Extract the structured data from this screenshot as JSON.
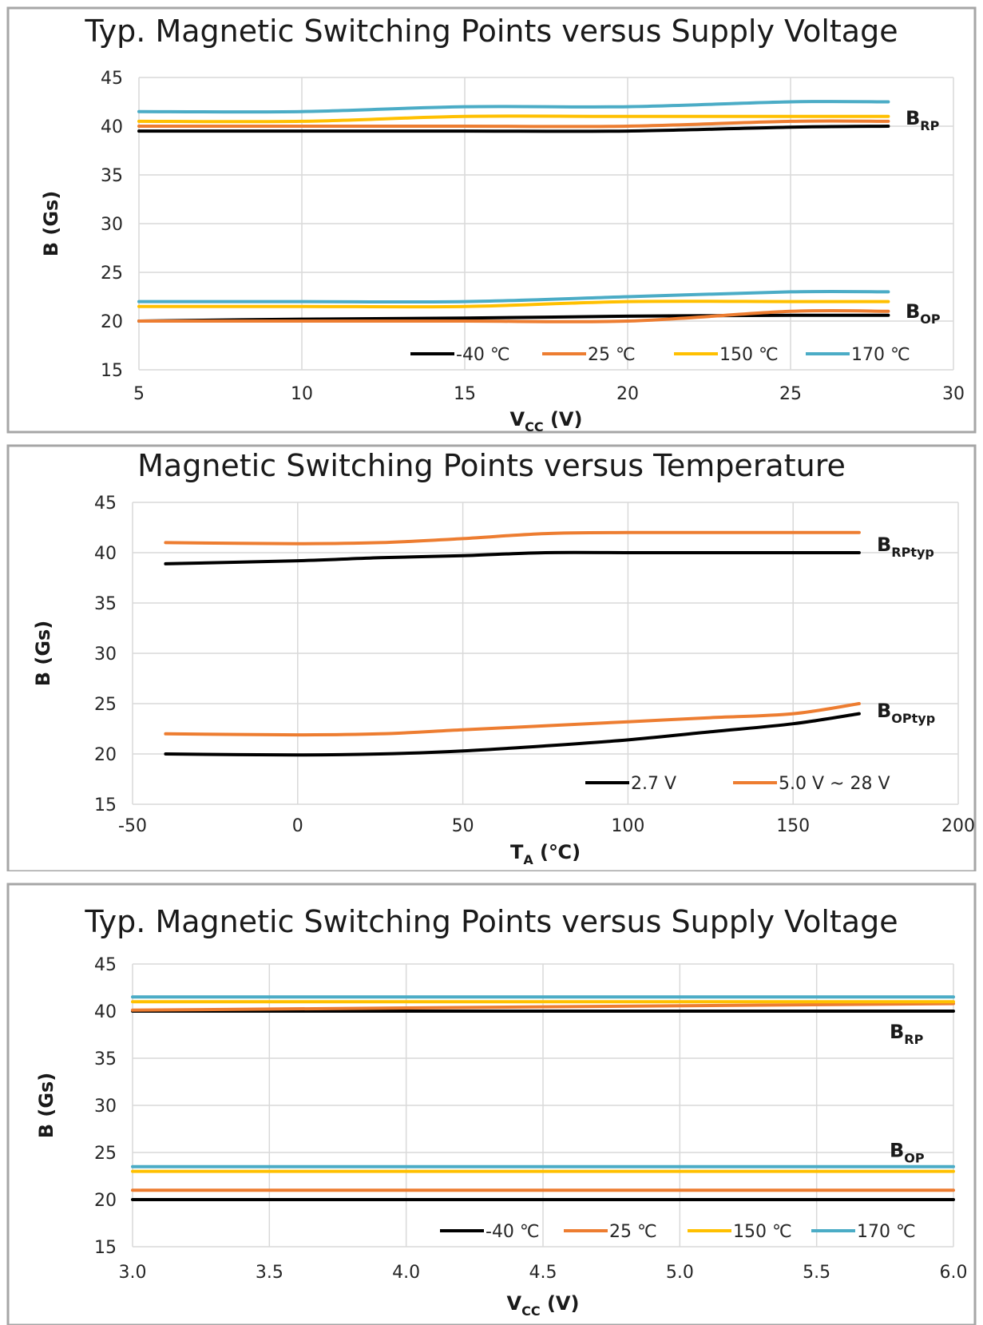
{
  "chart_data": [
    {
      "type": "line",
      "title": "Typ. Magnetic Switching Points versus Supply Voltage",
      "xlabel": "V",
      "xlabel_sub": "CC",
      "xlabel_unit": "(V)",
      "ylabel": "B (Gs)",
      "xlim": [
        5,
        30
      ],
      "ylim": [
        15,
        45
      ],
      "xticks": [
        "5",
        "10",
        "15",
        "20",
        "25",
        "30"
      ],
      "yticks": [
        "15",
        "20",
        "25",
        "30",
        "35",
        "40",
        "45"
      ],
      "grid": true,
      "legend": "bottom-right",
      "labels": [
        {
          "main": "B",
          "sub": "RP",
          "y": 40.8
        },
        {
          "main": "B",
          "sub": "OP",
          "y": 21.0
        }
      ],
      "series": [
        {
          "name": "-40 ℃",
          "color": "#000000",
          "x": [
            5,
            10,
            15,
            20,
            25,
            28
          ],
          "y": [
            39.5,
            39.5,
            39.5,
            39.5,
            39.9,
            40.0
          ]
        },
        {
          "name": "25 ℃",
          "color": "#ed7d31",
          "x": [
            5,
            10,
            15,
            20,
            25,
            28
          ],
          "y": [
            40.0,
            40.0,
            40.0,
            40.0,
            40.5,
            40.5
          ]
        },
        {
          "name": "150 ℃",
          "color": "#ffc000",
          "x": [
            5,
            10,
            15,
            20,
            25,
            28
          ],
          "y": [
            40.5,
            40.5,
            41.0,
            41.0,
            41.0,
            41.0
          ]
        },
        {
          "name": "170 ℃",
          "color": "#4bacc6",
          "x": [
            5,
            10,
            15,
            20,
            25,
            28
          ],
          "y": [
            41.5,
            41.5,
            42.0,
            42.0,
            42.5,
            42.5
          ]
        },
        {
          "name": "-40 ℃",
          "color": "#000000",
          "legend": false,
          "x": [
            5,
            10,
            15,
            20,
            25,
            28
          ],
          "y": [
            20.0,
            20.2,
            20.3,
            20.5,
            20.6,
            20.6
          ]
        },
        {
          "name": "25 ℃",
          "color": "#ed7d31",
          "legend": false,
          "x": [
            5,
            10,
            15,
            20,
            25,
            28
          ],
          "y": [
            20.0,
            20.0,
            20.0,
            20.0,
            21.0,
            21.0
          ]
        },
        {
          "name": "150 ℃",
          "color": "#ffc000",
          "legend": false,
          "x": [
            5,
            10,
            15,
            20,
            25,
            28
          ],
          "y": [
            21.5,
            21.5,
            21.5,
            22.0,
            22.0,
            22.0
          ]
        },
        {
          "name": "170 ℃",
          "color": "#4bacc6",
          "legend": false,
          "x": [
            5,
            10,
            15,
            20,
            25,
            28
          ],
          "y": [
            22.0,
            22.0,
            22.0,
            22.5,
            23.0,
            23.0
          ]
        }
      ]
    },
    {
      "type": "line",
      "title": "Magnetic Switching Points versus Temperature",
      "xlabel": "T",
      "xlabel_sub": "A",
      "xlabel_unit": "(℃)",
      "ylabel": "B (Gs)",
      "xlim": [
        -50,
        200
      ],
      "ylim": [
        15,
        45
      ],
      "xticks": [
        "-50",
        "0",
        "50",
        "100",
        "150",
        "200"
      ],
      "yticks": [
        "15",
        "20",
        "25",
        "30",
        "35",
        "40",
        "45"
      ],
      "grid": true,
      "legend": "bottom-right",
      "labels": [
        {
          "main": "B",
          "sub": "RPtyp",
          "y": 40.8
        },
        {
          "main": "B",
          "sub": "OPtyp",
          "y": 24.3
        }
      ],
      "series": [
        {
          "name": "2.7 V",
          "color": "#000000",
          "x": [
            -40,
            0,
            25,
            50,
            75,
            100,
            125,
            150,
            170
          ],
          "y": [
            38.9,
            39.2,
            39.5,
            39.7,
            40.0,
            40.0,
            40.0,
            40.0,
            40.0
          ]
        },
        {
          "name": "5.0 V ~ 28 V",
          "color": "#ed7d31",
          "x": [
            -40,
            0,
            25,
            50,
            75,
            100,
            125,
            150,
            170
          ],
          "y": [
            41.0,
            40.9,
            41.0,
            41.4,
            41.9,
            42.0,
            42.0,
            42.0,
            42.0
          ]
        },
        {
          "name": "2.7 V",
          "color": "#000000",
          "legend": false,
          "x": [
            -40,
            0,
            25,
            50,
            75,
            100,
            125,
            150,
            170
          ],
          "y": [
            20.0,
            19.9,
            20.0,
            20.3,
            20.8,
            21.4,
            22.2,
            23.0,
            24.0
          ]
        },
        {
          "name": "5.0 V ~ 28 V",
          "color": "#ed7d31",
          "legend": false,
          "x": [
            -40,
            0,
            25,
            50,
            75,
            100,
            125,
            150,
            170
          ],
          "y": [
            22.0,
            21.9,
            22.0,
            22.4,
            22.8,
            23.2,
            23.6,
            24.0,
            25.0
          ]
        }
      ]
    },
    {
      "type": "line",
      "title": "Typ. Magnetic Switching Points versus Supply Voltage",
      "xlabel": "V",
      "xlabel_sub": "CC",
      "xlabel_unit": "(V)",
      "ylabel": "B (Gs)",
      "xlim": [
        3.0,
        6.0
      ],
      "ylim": [
        15,
        45
      ],
      "xticks": [
        "3.0",
        "3.5",
        "4.0",
        "4.5",
        "5.0",
        "5.5",
        "6.0"
      ],
      "yticks": [
        "15",
        "20",
        "25",
        "30",
        "35",
        "40",
        "45"
      ],
      "grid": true,
      "legend": "bottom-right",
      "labels": [
        {
          "main": "B",
          "sub": "RP",
          "y": 37.8
        },
        {
          "main": "B",
          "sub": "OP",
          "y": 25.2
        }
      ],
      "series": [
        {
          "name": "-40 ℃",
          "color": "#000000",
          "x": [
            3.0,
            6.0
          ],
          "y": [
            40.0,
            40.0
          ]
        },
        {
          "name": "25 ℃",
          "color": "#ed7d31",
          "x": [
            3.0,
            6.0
          ],
          "y": [
            40.1,
            40.8
          ]
        },
        {
          "name": "150 ℃",
          "color": "#ffc000",
          "x": [
            3.0,
            6.0
          ],
          "y": [
            41.0,
            41.0
          ]
        },
        {
          "name": "170 ℃",
          "color": "#4bacc6",
          "x": [
            3.0,
            6.0
          ],
          "y": [
            41.5,
            41.5
          ]
        },
        {
          "name": "-40 ℃",
          "color": "#000000",
          "legend": false,
          "x": [
            3.0,
            6.0
          ],
          "y": [
            20.0,
            20.0
          ]
        },
        {
          "name": "25 ℃",
          "color": "#ed7d31",
          "legend": false,
          "x": [
            3.0,
            6.0
          ],
          "y": [
            21.0,
            21.0
          ]
        },
        {
          "name": "150 ℃",
          "color": "#ffc000",
          "legend": false,
          "x": [
            3.0,
            6.0
          ],
          "y": [
            23.0,
            23.0
          ]
        },
        {
          "name": "170 ℃",
          "color": "#4bacc6",
          "legend": false,
          "x": [
            3.0,
            6.0
          ],
          "y": [
            23.5,
            23.5
          ]
        }
      ]
    }
  ]
}
